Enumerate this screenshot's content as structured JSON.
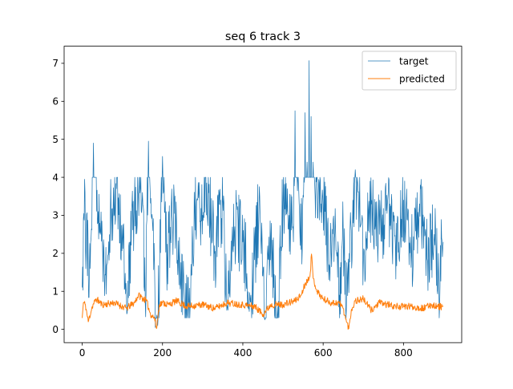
{
  "chart_data": {
    "type": "line",
    "title": "seq 6 track 3",
    "xlabel": "",
    "ylabel": "",
    "xlim": [
      -45,
      945
    ],
    "ylim": [
      -0.35,
      7.45
    ],
    "xticks": [
      0,
      200,
      400,
      600,
      800
    ],
    "yticks": [
      0,
      1,
      2,
      3,
      4,
      5,
      6,
      7
    ],
    "grid": false,
    "legend_position": "top-right",
    "n_points": 900,
    "series": [
      {
        "name": "target",
        "color": "#1f77b4",
        "linewidth": 0.75,
        "keypoints": [
          [
            0,
            1.1
          ],
          [
            4,
            3.05
          ],
          [
            6,
            3.95
          ],
          [
            10,
            2.2
          ],
          [
            20,
            1.6
          ],
          [
            28,
            4.9
          ],
          [
            40,
            3.1
          ],
          [
            45,
            2.5
          ],
          [
            55,
            1.4
          ],
          [
            70,
            3.0
          ],
          [
            85,
            3.7
          ],
          [
            100,
            2.4
          ],
          [
            110,
            1.0
          ],
          [
            130,
            3.3
          ],
          [
            150,
            3.6
          ],
          [
            157,
            0.7
          ],
          [
            165,
            4.95
          ],
          [
            175,
            2.8
          ],
          [
            182,
            0.05
          ],
          [
            188,
            0.1
          ],
          [
            200,
            4.55
          ],
          [
            210,
            2.0
          ],
          [
            230,
            3.05
          ],
          [
            245,
            1.2
          ],
          [
            265,
            0.3
          ],
          [
            280,
            3.2
          ],
          [
            300,
            3.0
          ],
          [
            310,
            3.85
          ],
          [
            330,
            2.0
          ],
          [
            350,
            3.4
          ],
          [
            360,
            0.5
          ],
          [
            380,
            2.7
          ],
          [
            400,
            2.3
          ],
          [
            420,
            0.9
          ],
          [
            440,
            3.1
          ],
          [
            455,
            0.25
          ],
          [
            470,
            2.4
          ],
          [
            485,
            0.3
          ],
          [
            500,
            3.3
          ],
          [
            515,
            3.0
          ],
          [
            525,
            2.7
          ],
          [
            530,
            5.75
          ],
          [
            540,
            3.4
          ],
          [
            548,
            2.1
          ],
          [
            555,
            5.7
          ],
          [
            560,
            4.4
          ],
          [
            565,
            7.07
          ],
          [
            570,
            5.6
          ],
          [
            575,
            4.4
          ],
          [
            580,
            3.5
          ],
          [
            588,
            3.6
          ],
          [
            595,
            3.3
          ],
          [
            605,
            3.1
          ],
          [
            615,
            1.7
          ],
          [
            625,
            2.9
          ],
          [
            640,
            0.9
          ],
          [
            650,
            2.6
          ],
          [
            658,
            0.6
          ],
          [
            665,
            2.0
          ],
          [
            675,
            2.8
          ],
          [
            680,
            4.2
          ],
          [
            690,
            3.3
          ],
          [
            700,
            1.7
          ],
          [
            720,
            3.3
          ],
          [
            740,
            2.5
          ],
          [
            760,
            3.3
          ],
          [
            780,
            2.2
          ],
          [
            800,
            3.4
          ],
          [
            820,
            2.0
          ],
          [
            840,
            3.3
          ],
          [
            860,
            1.8
          ],
          [
            880,
            2.6
          ],
          [
            890,
            0.6
          ],
          [
            895,
            2.4
          ],
          [
            899,
            2.3
          ]
        ],
        "noise_amplitude": 1.05,
        "noise_band": [
          0.3,
          4.0
        ],
        "noise_seed": 6
      },
      {
        "name": "predicted",
        "color": "#ff7f0e",
        "linewidth": 1.0,
        "keypoints": [
          [
            0,
            0.3
          ],
          [
            3,
            0.7
          ],
          [
            8,
            0.65
          ],
          [
            15,
            0.2
          ],
          [
            25,
            0.6
          ],
          [
            35,
            0.8
          ],
          [
            50,
            0.65
          ],
          [
            80,
            0.7
          ],
          [
            110,
            0.55
          ],
          [
            130,
            0.7
          ],
          [
            140,
            0.9
          ],
          [
            160,
            0.75
          ],
          [
            170,
            0.4
          ],
          [
            180,
            0.3
          ],
          [
            185,
            0.02
          ],
          [
            192,
            0.65
          ],
          [
            200,
            0.7
          ],
          [
            215,
            0.65
          ],
          [
            235,
            0.75
          ],
          [
            260,
            0.6
          ],
          [
            300,
            0.65
          ],
          [
            330,
            0.55
          ],
          [
            360,
            0.7
          ],
          [
            400,
            0.65
          ],
          [
            430,
            0.6
          ],
          [
            450,
            0.4
          ],
          [
            470,
            0.65
          ],
          [
            500,
            0.65
          ],
          [
            530,
            0.75
          ],
          [
            545,
            0.9
          ],
          [
            555,
            1.2
          ],
          [
            562,
            1.3
          ],
          [
            568,
            1.5
          ],
          [
            571,
            1.98
          ],
          [
            575,
            1.35
          ],
          [
            585,
            1.0
          ],
          [
            600,
            0.8
          ],
          [
            620,
            0.7
          ],
          [
            640,
            0.7
          ],
          [
            650,
            0.55
          ],
          [
            658,
            0.2
          ],
          [
            664,
            0.02
          ],
          [
            670,
            0.5
          ],
          [
            680,
            0.75
          ],
          [
            700,
            0.8
          ],
          [
            720,
            0.5
          ],
          [
            740,
            0.7
          ],
          [
            780,
            0.6
          ],
          [
            800,
            0.6
          ],
          [
            820,
            0.6
          ],
          [
            850,
            0.55
          ],
          [
            870,
            0.65
          ],
          [
            885,
            0.6
          ],
          [
            899,
            0.6
          ]
        ],
        "noise_amplitude": 0.09,
        "noise_band": [
          0.0,
          2.0
        ],
        "noise_seed": 11
      }
    ]
  }
}
